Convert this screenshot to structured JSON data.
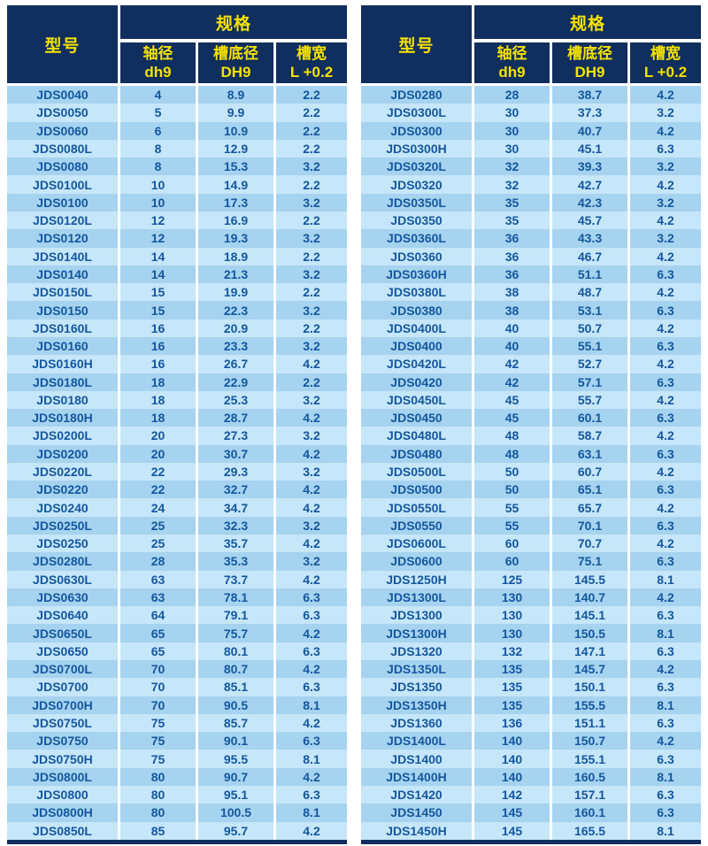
{
  "colors": {
    "header_bg": "#102e5e",
    "header_text": "#f5e203",
    "row_odd": "#a6d3ef",
    "row_even": "#c6e6f9",
    "cell_text": "#14579f",
    "separator": "#ffffff"
  },
  "header": {
    "model": "型号",
    "spec_group": "规格",
    "columns": [
      {
        "line1": "轴径",
        "line2": "dh9"
      },
      {
        "line1": "槽底径",
        "line2": "DH9"
      },
      {
        "line1": "槽宽",
        "line2": "L +0.2"
      }
    ]
  },
  "tables": [
    {
      "name": "left",
      "rows": [
        [
          "JDS0040",
          "4",
          "8.9",
          "2.2"
        ],
        [
          "JDS0050",
          "5",
          "9.9",
          "2.2"
        ],
        [
          "JDS0060",
          "6",
          "10.9",
          "2.2"
        ],
        [
          "JDS0080L",
          "8",
          "12.9",
          "2.2"
        ],
        [
          "JDS0080",
          "8",
          "15.3",
          "3.2"
        ],
        [
          "JDS0100L",
          "10",
          "14.9",
          "2.2"
        ],
        [
          "JDS0100",
          "10",
          "17.3",
          "3.2"
        ],
        [
          "JDS0120L",
          "12",
          "16.9",
          "2.2"
        ],
        [
          "JDS0120",
          "12",
          "19.3",
          "3.2"
        ],
        [
          "JDS0140L",
          "14",
          "18.9",
          "2.2"
        ],
        [
          "JDS0140",
          "14",
          "21.3",
          "3.2"
        ],
        [
          "JDS0150L",
          "15",
          "19.9",
          "2.2"
        ],
        [
          "JDS0150",
          "15",
          "22.3",
          "3.2"
        ],
        [
          "JDS0160L",
          "16",
          "20.9",
          "2.2"
        ],
        [
          "JDS0160",
          "16",
          "23.3",
          "3.2"
        ],
        [
          "JDS0160H",
          "16",
          "26.7",
          "4.2"
        ],
        [
          "JDS0180L",
          "18",
          "22.9",
          "2.2"
        ],
        [
          "JDS0180",
          "18",
          "25.3",
          "3.2"
        ],
        [
          "JDS0180H",
          "18",
          "28.7",
          "4.2"
        ],
        [
          "JDS0200L",
          "20",
          "27.3",
          "3.2"
        ],
        [
          "JDS0200",
          "20",
          "30.7",
          "4.2"
        ],
        [
          "JDS0220L",
          "22",
          "29.3",
          "3.2"
        ],
        [
          "JDS0220",
          "22",
          "32.7",
          "4.2"
        ],
        [
          "JDS0240",
          "24",
          "34.7",
          "4.2"
        ],
        [
          "JDS0250L",
          "25",
          "32.3",
          "3.2"
        ],
        [
          "JDS0250",
          "25",
          "35.7",
          "4.2"
        ],
        [
          "JDS0280L",
          "28",
          "35.3",
          "3.2"
        ],
        [
          "JDS0630L",
          "63",
          "73.7",
          "4.2"
        ],
        [
          "JDS0630",
          "63",
          "78.1",
          "6.3"
        ],
        [
          "JDS0640",
          "64",
          "79.1",
          "6.3"
        ],
        [
          "JDS0650L",
          "65",
          "75.7",
          "4.2"
        ],
        [
          "JDS0650",
          "65",
          "80.1",
          "6.3"
        ],
        [
          "JDS0700L",
          "70",
          "80.7",
          "4.2"
        ],
        [
          "JDS0700",
          "70",
          "85.1",
          "6.3"
        ],
        [
          "JDS0700H",
          "70",
          "90.5",
          "8.1"
        ],
        [
          "JDS0750L",
          "75",
          "85.7",
          "4.2"
        ],
        [
          "JDS0750",
          "75",
          "90.1",
          "6.3"
        ],
        [
          "JDS0750H",
          "75",
          "95.5",
          "8.1"
        ],
        [
          "JDS0800L",
          "80",
          "90.7",
          "4.2"
        ],
        [
          "JDS0800",
          "80",
          "95.1",
          "6.3"
        ],
        [
          "JDS0800H",
          "80",
          "100.5",
          "8.1"
        ],
        [
          "JDS0850L",
          "85",
          "95.7",
          "4.2"
        ]
      ]
    },
    {
      "name": "right",
      "rows": [
        [
          "JDS0280",
          "28",
          "38.7",
          "4.2"
        ],
        [
          "JDS0300L",
          "30",
          "37.3",
          "3.2"
        ],
        [
          "JDS0300",
          "30",
          "40.7",
          "4.2"
        ],
        [
          "JDS0300H",
          "30",
          "45.1",
          "6.3"
        ],
        [
          "JDS0320L",
          "32",
          "39.3",
          "3.2"
        ],
        [
          "JDS0320",
          "32",
          "42.7",
          "4.2"
        ],
        [
          "JDS0350L",
          "35",
          "42.3",
          "3.2"
        ],
        [
          "JDS0350",
          "35",
          "45.7",
          "4.2"
        ],
        [
          "JDS0360L",
          "36",
          "43.3",
          "3.2"
        ],
        [
          "JDS0360",
          "36",
          "46.7",
          "4.2"
        ],
        [
          "JDS0360H",
          "36",
          "51.1",
          "6.3"
        ],
        [
          "JDS0380L",
          "38",
          "48.7",
          "4.2"
        ],
        [
          "JDS0380",
          "38",
          "53.1",
          "6.3"
        ],
        [
          "JDS0400L",
          "40",
          "50.7",
          "4.2"
        ],
        [
          "JDS0400",
          "40",
          "55.1",
          "6.3"
        ],
        [
          "JDS0420L",
          "42",
          "52.7",
          "4.2"
        ],
        [
          "JDS0420",
          "42",
          "57.1",
          "6.3"
        ],
        [
          "JDS0450L",
          "45",
          "55.7",
          "4.2"
        ],
        [
          "JDS0450",
          "45",
          "60.1",
          "6.3"
        ],
        [
          "JDS0480L",
          "48",
          "58.7",
          "4.2"
        ],
        [
          "JDS0480",
          "48",
          "63.1",
          "6.3"
        ],
        [
          "JDS0500L",
          "50",
          "60.7",
          "4.2"
        ],
        [
          "JDS0500",
          "50",
          "65.1",
          "6.3"
        ],
        [
          "JDS0550L",
          "55",
          "65.7",
          "4.2"
        ],
        [
          "JDS0550",
          "55",
          "70.1",
          "6.3"
        ],
        [
          "JDS0600L",
          "60",
          "70.7",
          "4.2"
        ],
        [
          "JDS0600",
          "60",
          "75.1",
          "6.3"
        ],
        [
          "JDS1250H",
          "125",
          "145.5",
          "8.1"
        ],
        [
          "JDS1300L",
          "130",
          "140.7",
          "4.2"
        ],
        [
          "JDS1300",
          "130",
          "145.1",
          "6.3"
        ],
        [
          "JDS1300H",
          "130",
          "150.5",
          "8.1"
        ],
        [
          "JDS1320",
          "132",
          "147.1",
          "6.3"
        ],
        [
          "JDS1350L",
          "135",
          "145.7",
          "4.2"
        ],
        [
          "JDS1350",
          "135",
          "150.1",
          "6.3"
        ],
        [
          "JDS1350H",
          "135",
          "155.5",
          "8.1"
        ],
        [
          "JDS1360",
          "136",
          "151.1",
          "6.3"
        ],
        [
          "JDS1400L",
          "140",
          "150.7",
          "4.2"
        ],
        [
          "JDS1400",
          "140",
          "155.1",
          "6.3"
        ],
        [
          "JDS1400H",
          "140",
          "160.5",
          "8.1"
        ],
        [
          "JDS1420",
          "142",
          "157.1",
          "6.3"
        ],
        [
          "JDS1450",
          "145",
          "160.1",
          "6.3"
        ],
        [
          "JDS1450H",
          "145",
          "165.5",
          "8.1"
        ]
      ]
    }
  ]
}
